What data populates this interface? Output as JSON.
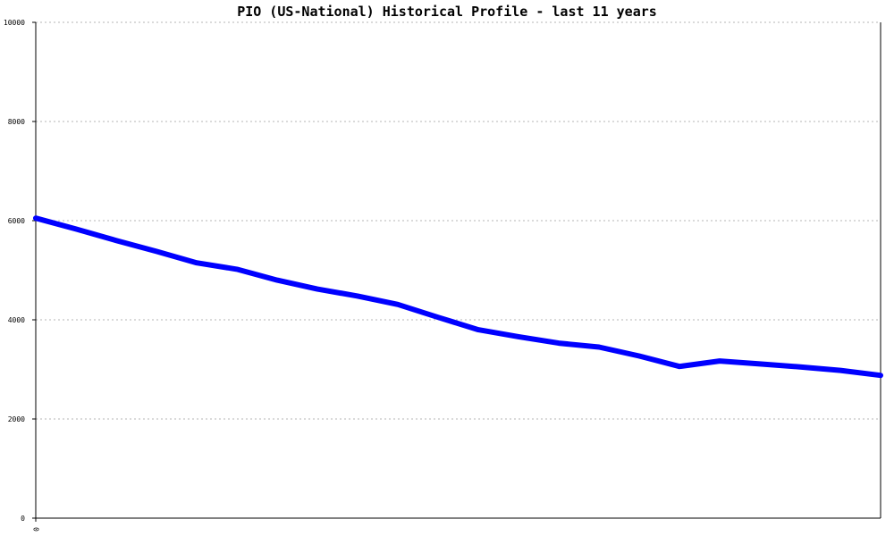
{
  "chart_data": {
    "type": "line",
    "title": "PIO (US-National) Historical Profile - last 11 years",
    "xlabel": "",
    "ylabel": "",
    "ylim": [
      0,
      10000
    ],
    "y_ticks": [
      "0",
      "2000",
      "4000",
      "6000",
      "8000",
      "10000"
    ],
    "x_ticks": [
      "0"
    ],
    "grid": true,
    "series_color": "#0000ff",
    "series": [
      {
        "values": [
          6050,
          5830,
          5600,
          5380,
          5150,
          5020,
          4800,
          4620,
          4480,
          4310,
          4050,
          3800,
          3660,
          3530,
          3450,
          3270,
          3060,
          3170,
          3110,
          3050,
          2980,
          2880
        ]
      }
    ]
  }
}
